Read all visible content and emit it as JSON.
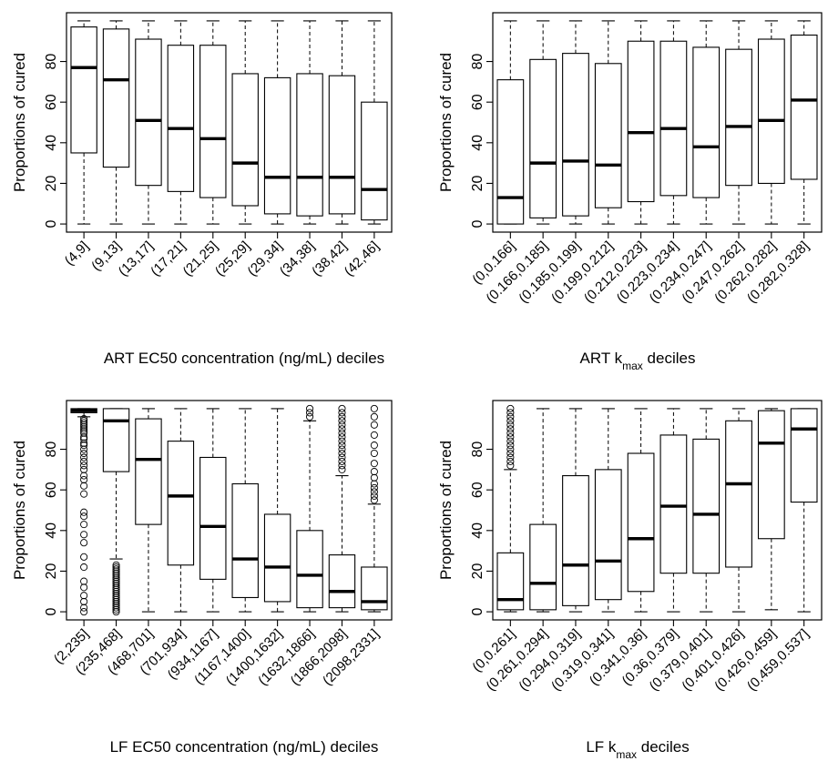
{
  "chart_data": [
    {
      "type": "box",
      "ylabel": "Proportions of cured",
      "xlabel": "ART EC50 concentration (ng/mL) deciles",
      "xlabel_sub": "",
      "xlabel_suffix": "",
      "ylim": [
        0,
        100
      ],
      "yticks": [
        0,
        20,
        40,
        60,
        80
      ],
      "categories": [
        "(4,9]",
        "(9,13]",
        "(13,17]",
        "(17,21]",
        "(21,25]",
        "(25,29]",
        "(29,34]",
        "(34,38]",
        "(38,42]",
        "(42,46]"
      ],
      "boxes": [
        {
          "min": 0,
          "q1": 35,
          "median": 77,
          "q3": 97,
          "max": 100
        },
        {
          "min": 0,
          "q1": 28,
          "median": 71,
          "q3": 96,
          "max": 100
        },
        {
          "min": 0,
          "q1": 19,
          "median": 51,
          "q3": 91,
          "max": 100
        },
        {
          "min": 0,
          "q1": 16,
          "median": 47,
          "q3": 88,
          "max": 100
        },
        {
          "min": 0,
          "q1": 13,
          "median": 42,
          "q3": 88,
          "max": 100
        },
        {
          "min": 0,
          "q1": 9,
          "median": 30,
          "q3": 74,
          "max": 100
        },
        {
          "min": 0,
          "q1": 5,
          "median": 23,
          "q3": 72,
          "max": 100
        },
        {
          "min": 0,
          "q1": 4,
          "median": 23,
          "q3": 74,
          "max": 100
        },
        {
          "min": 0,
          "q1": 5,
          "median": 23,
          "q3": 73,
          "max": 100
        },
        {
          "min": 0,
          "q1": 2,
          "median": 17,
          "q3": 60,
          "max": 100
        }
      ],
      "outliers": []
    },
    {
      "type": "box",
      "ylabel": "Proportions of cured",
      "xlabel": "ART k",
      "xlabel_sub": "max",
      "xlabel_suffix": " deciles",
      "ylim": [
        0,
        100
      ],
      "yticks": [
        0,
        20,
        40,
        60,
        80
      ],
      "categories": [
        "(0,0.166]",
        "(0.166,0.185]",
        "(0.185,0.199]",
        "(0.199,0.212]",
        "(0.212,0.223]",
        "(0.223,0.234]",
        "(0.234,0.247]",
        "(0.247,0.262]",
        "(0.262,0.282]",
        "(0.282,0.328]"
      ],
      "boxes": [
        {
          "min": 0,
          "q1": 0,
          "median": 13,
          "q3": 71,
          "max": 100
        },
        {
          "min": 0,
          "q1": 3,
          "median": 30,
          "q3": 81,
          "max": 100
        },
        {
          "min": 0,
          "q1": 4,
          "median": 31,
          "q3": 84,
          "max": 100
        },
        {
          "min": 0,
          "q1": 8,
          "median": 29,
          "q3": 79,
          "max": 100
        },
        {
          "min": 0,
          "q1": 11,
          "median": 45,
          "q3": 90,
          "max": 100
        },
        {
          "min": 0,
          "q1": 14,
          "median": 47,
          "q3": 90,
          "max": 100
        },
        {
          "min": 0,
          "q1": 13,
          "median": 38,
          "q3": 87,
          "max": 100
        },
        {
          "min": 0,
          "q1": 19,
          "median": 48,
          "q3": 86,
          "max": 100
        },
        {
          "min": 0,
          "q1": 20,
          "median": 51,
          "q3": 91,
          "max": 100
        },
        {
          "min": 0,
          "q1": 22,
          "median": 61,
          "q3": 93,
          "max": 100
        }
      ],
      "outliers": []
    },
    {
      "type": "box",
      "ylabel": "Proportions of cured",
      "xlabel": "LF EC50 concentration (ng/mL) deciles",
      "xlabel_sub": "",
      "xlabel_suffix": "",
      "ylim": [
        0,
        100
      ],
      "yticks": [
        0,
        20,
        40,
        60,
        80
      ],
      "categories": [
        "(2,235]",
        "(235,468]",
        "(468,701]",
        "(701,934]",
        "(934,1167]",
        "(1167,1400]",
        "(1400,1632]",
        "(1632,1866]",
        "(1866,2098]",
        "(2098,2331]"
      ],
      "boxes": [
        {
          "min": 96,
          "q1": 98,
          "median": 99,
          "q3": 100,
          "max": 100
        },
        {
          "min": 26,
          "q1": 69,
          "median": 94,
          "q3": 100,
          "max": 100
        },
        {
          "min": 0,
          "q1": 43,
          "median": 75,
          "q3": 95,
          "max": 100
        },
        {
          "min": 0,
          "q1": 23,
          "median": 57,
          "q3": 84,
          "max": 100
        },
        {
          "min": 0,
          "q1": 16,
          "median": 42,
          "q3": 76,
          "max": 100
        },
        {
          "min": 0,
          "q1": 7,
          "median": 26,
          "q3": 63,
          "max": 100
        },
        {
          "min": 0,
          "q1": 5,
          "median": 22,
          "q3": 48,
          "max": 100
        },
        {
          "min": 0,
          "q1": 2,
          "median": 18,
          "q3": 40,
          "max": 94
        },
        {
          "min": 0,
          "q1": 2,
          "median": 10,
          "q3": 28,
          "max": 67
        },
        {
          "min": 0,
          "q1": 1,
          "median": 5,
          "q3": 22,
          "max": 53
        }
      ],
      "outliers": [
        {
          "box": 0,
          "values": [
            0,
            2,
            5,
            8,
            12,
            15,
            22,
            27,
            34,
            38,
            43,
            47,
            49,
            58,
            62,
            65,
            67,
            70,
            72,
            74,
            76,
            78,
            80,
            82,
            83,
            85,
            86,
            88,
            89,
            90,
            91,
            92,
            93,
            94,
            95
          ]
        },
        {
          "box": 1,
          "values": [
            0,
            1,
            2,
            3,
            4,
            5,
            6,
            7,
            8,
            9,
            10,
            11,
            12,
            13,
            14,
            15,
            16,
            17,
            18,
            19,
            20,
            21,
            22,
            23
          ]
        },
        {
          "box": 7,
          "values": [
            96,
            98,
            100
          ]
        },
        {
          "box": 8,
          "values": [
            70,
            72,
            74,
            76,
            78,
            80,
            82,
            84,
            86,
            88,
            90,
            92,
            94,
            96,
            98,
            100
          ]
        },
        {
          "box": 9,
          "values": [
            55,
            57,
            59,
            61,
            63,
            66,
            69,
            73,
            78,
            82,
            87,
            92,
            96,
            100
          ]
        }
      ]
    },
    {
      "type": "box",
      "ylabel": "Proportions of cured",
      "xlabel": "LF k",
      "xlabel_sub": "max",
      "xlabel_suffix": " deciles",
      "ylim": [
        0,
        100
      ],
      "yticks": [
        0,
        20,
        40,
        60,
        80
      ],
      "categories": [
        "(0,0.261]",
        "(0.261,0.294]",
        "(0.294,0.319]",
        "(0.319,0.341]",
        "(0.341,0.36]",
        "(0.36,0.379]",
        "(0.379,0.401]",
        "(0.401,0.426]",
        "(0.426,0.459]",
        "(0.459,0.537]"
      ],
      "boxes": [
        {
          "min": 0,
          "q1": 1,
          "median": 6,
          "q3": 29,
          "max": 70
        },
        {
          "min": 0,
          "q1": 1,
          "median": 14,
          "q3": 43,
          "max": 100
        },
        {
          "min": 0,
          "q1": 3,
          "median": 23,
          "q3": 67,
          "max": 100
        },
        {
          "min": 0,
          "q1": 6,
          "median": 25,
          "q3": 70,
          "max": 100
        },
        {
          "min": 0,
          "q1": 10,
          "median": 36,
          "q3": 78,
          "max": 100
        },
        {
          "min": 0,
          "q1": 19,
          "median": 52,
          "q3": 87,
          "max": 100
        },
        {
          "min": 0,
          "q1": 19,
          "median": 48,
          "q3": 85,
          "max": 100
        },
        {
          "min": 0,
          "q1": 22,
          "median": 63,
          "q3": 94,
          "max": 100
        },
        {
          "min": 1,
          "q1": 36,
          "median": 83,
          "q3": 99,
          "max": 100
        },
        {
          "min": 0,
          "q1": 54,
          "median": 90,
          "q3": 100,
          "max": 100
        }
      ],
      "outliers": [
        {
          "box": 0,
          "values": [
            72,
            74,
            76,
            78,
            80,
            82,
            84,
            86,
            88,
            90,
            92,
            94,
            96,
            98,
            100
          ]
        }
      ]
    }
  ]
}
